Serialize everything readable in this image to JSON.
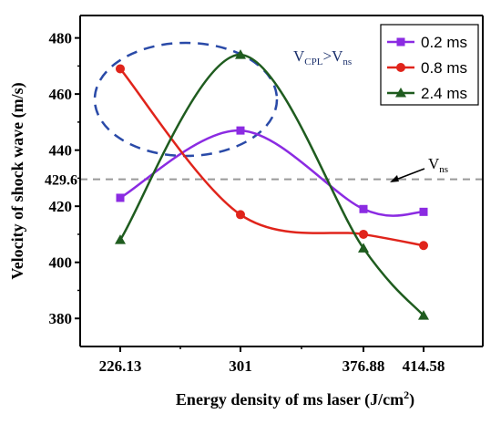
{
  "chart_data": {
    "type": "line",
    "x": [
      226.13,
      301,
      376.88,
      414.58
    ],
    "x_tick_labels": [
      "226.13",
      "301",
      "376.88",
      "414.58"
    ],
    "xlabel": "Energy density of ms laser (J/cm",
    "xlabel_sup": "2",
    "xlabel_end": ")",
    "ylabel": "Velocity of shock wave (m/s)",
    "ylim": [
      370,
      488
    ],
    "y_ticks": [
      380,
      400,
      420,
      440,
      460,
      480
    ],
    "y_tick_labels": [
      "380",
      "400",
      "420",
      "440",
      "460",
      "480"
    ],
    "series": [
      {
        "name": "0.2 ms",
        "values": [
          423,
          447,
          419,
          418
        ],
        "color": "#8b2be2",
        "marker": "square"
      },
      {
        "name": "0.8 ms",
        "values": [
          469,
          417,
          410,
          406
        ],
        "color": "#e0241b",
        "marker": "circle"
      },
      {
        "name": "2.4 ms",
        "values": [
          408,
          474,
          405,
          381
        ],
        "color": "#1f5c1f",
        "marker": "triangle"
      }
    ],
    "reference_line": {
      "value": 429.6,
      "label": "429.6",
      "color": "#999999"
    },
    "annotations": {
      "cpl_main": "V",
      "cpl_sub": "CPL",
      "cpl_gt": ">",
      "ns_main": "V",
      "ns_sub": "ns",
      "ref_main": "V",
      "ref_sub": "ns"
    },
    "ellipse_color": "#2a4aa8",
    "legend_position": "top-right",
    "grid": false
  }
}
